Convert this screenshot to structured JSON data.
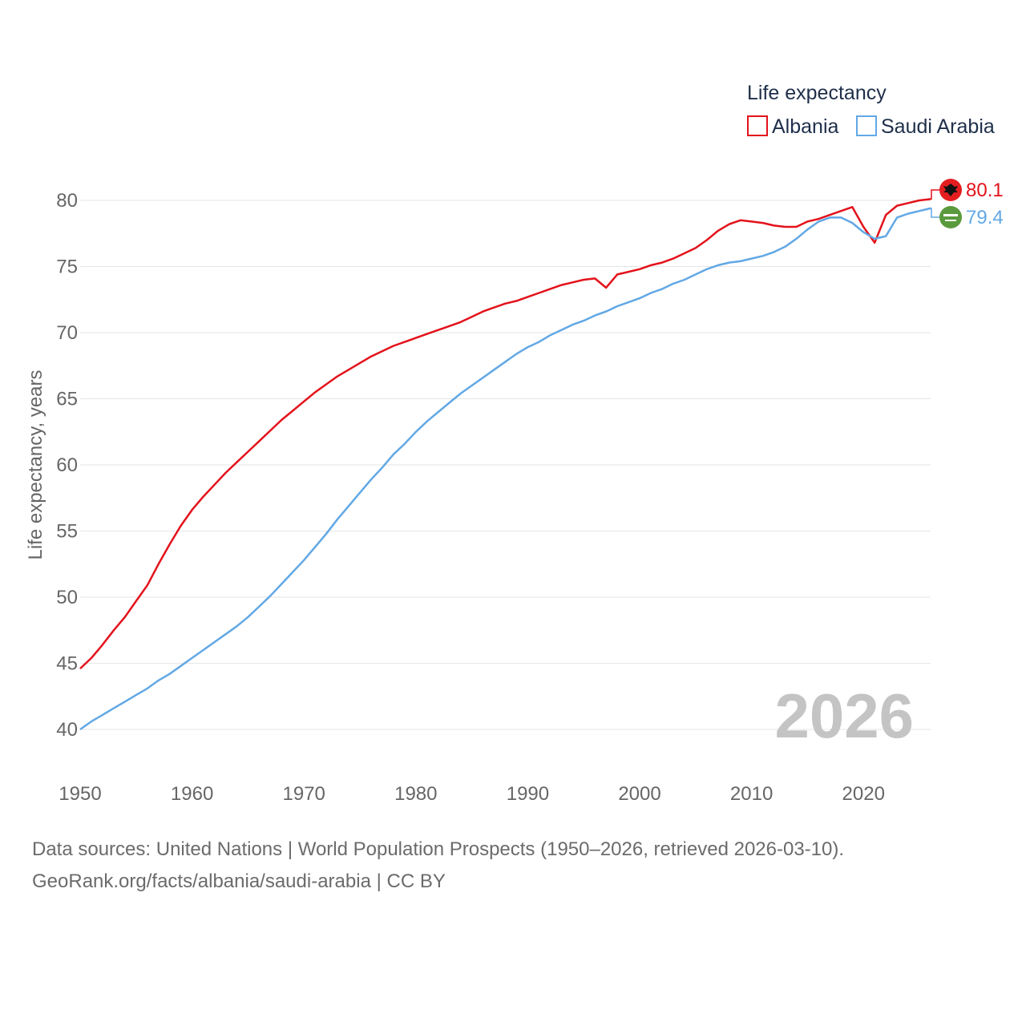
{
  "chart_data": {
    "type": "line",
    "legend_title": "Life expectancy",
    "ylabel": "Life expectancy, years",
    "xlabel": "",
    "xlim": [
      1950,
      2026
    ],
    "ylim": [
      38,
      82
    ],
    "x_ticks": [
      1950,
      1960,
      1970,
      1980,
      1990,
      2000,
      2010,
      2020
    ],
    "y_ticks": [
      40,
      45,
      50,
      55,
      60,
      65,
      70,
      75,
      80
    ],
    "current_year": "2026",
    "legend_position": "top-right",
    "years": [
      1950,
      1951,
      1952,
      1953,
      1954,
      1955,
      1956,
      1957,
      1958,
      1959,
      1960,
      1961,
      1962,
      1963,
      1964,
      1965,
      1966,
      1967,
      1968,
      1969,
      1970,
      1971,
      1972,
      1973,
      1974,
      1975,
      1976,
      1977,
      1978,
      1979,
      1980,
      1981,
      1982,
      1983,
      1984,
      1985,
      1986,
      1987,
      1988,
      1989,
      1990,
      1991,
      1992,
      1993,
      1994,
      1995,
      1996,
      1997,
      1998,
      1999,
      2000,
      2001,
      2002,
      2003,
      2004,
      2005,
      2006,
      2007,
      2008,
      2009,
      2010,
      2011,
      2012,
      2013,
      2014,
      2015,
      2016,
      2017,
      2018,
      2019,
      2020,
      2021,
      2022,
      2023,
      2024,
      2025,
      2026
    ],
    "series": [
      {
        "name": "Albania",
        "color": "#e3121b",
        "end_label": "80.1",
        "values": [
          44.6,
          45.4,
          46.4,
          47.5,
          48.5,
          49.7,
          50.9,
          52.5,
          54.0,
          55.4,
          56.6,
          57.6,
          58.5,
          59.4,
          60.2,
          61.0,
          61.8,
          62.6,
          63.4,
          64.1,
          64.8,
          65.5,
          66.1,
          66.7,
          67.2,
          67.7,
          68.2,
          68.6,
          69.0,
          69.3,
          69.6,
          69.9,
          70.2,
          70.5,
          70.8,
          71.2,
          71.6,
          71.9,
          72.2,
          72.4,
          72.7,
          73.0,
          73.3,
          73.6,
          73.8,
          74.0,
          74.1,
          73.4,
          74.4,
          74.6,
          74.8,
          75.1,
          75.3,
          75.6,
          76.0,
          76.4,
          77.0,
          77.7,
          78.2,
          78.5,
          78.4,
          78.3,
          78.1,
          78.0,
          78.0,
          78.4,
          78.6,
          78.9,
          79.2,
          79.5,
          78.0,
          76.8,
          78.9,
          79.6,
          79.8,
          80.0,
          80.1
        ]
      },
      {
        "name": "Saudi Arabia",
        "color": "#62a8e5",
        "end_label": "79.4",
        "values": [
          40.0,
          40.6,
          41.1,
          41.6,
          42.1,
          42.6,
          43.1,
          43.7,
          44.2,
          44.8,
          45.4,
          46.0,
          46.6,
          47.2,
          47.8,
          48.5,
          49.3,
          50.1,
          51.0,
          51.9,
          52.8,
          53.8,
          54.8,
          55.9,
          56.9,
          57.9,
          58.9,
          59.8,
          60.8,
          61.6,
          62.5,
          63.3,
          64.0,
          64.7,
          65.4,
          66.0,
          66.6,
          67.2,
          67.8,
          68.4,
          68.9,
          69.3,
          69.8,
          70.2,
          70.6,
          70.9,
          71.3,
          71.6,
          72.0,
          72.3,
          72.6,
          73.0,
          73.3,
          73.7,
          74.0,
          74.4,
          74.8,
          75.1,
          75.3,
          75.4,
          75.6,
          75.8,
          76.1,
          76.5,
          77.1,
          77.8,
          78.4,
          78.7,
          78.7,
          78.3,
          77.6,
          77.1,
          77.3,
          78.7,
          79.0,
          79.2,
          79.4
        ]
      }
    ]
  },
  "footer": {
    "line1": "Data sources: United Nations | World Population Prospects (1950–2026, retrieved 2026-03-10).",
    "line2": "GeoRank.org/facts/albania/saudi-arabia | CC BY"
  }
}
